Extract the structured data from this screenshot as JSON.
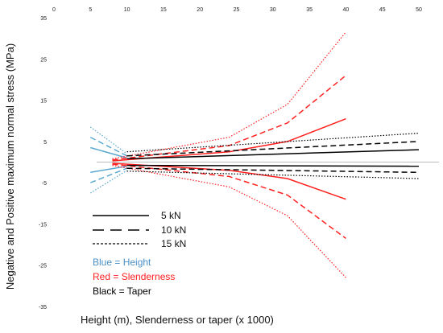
{
  "chart_data": {
    "type": "line",
    "title": "",
    "xlabel": "Height (m), Slenderness or taper (x 1000)",
    "ylabel": "Negative and Positive maximum normal stress (MPa)",
    "xlim": [
      0,
      50
    ],
    "ylim": [
      -35,
      35
    ],
    "x_ticks": [
      0,
      5,
      10,
      15,
      20,
      25,
      30,
      35,
      40,
      45,
      50
    ],
    "y_ticks": [
      35,
      25,
      15,
      5,
      -5,
      -15,
      -25,
      -35
    ],
    "grid": false,
    "zero_line": true,
    "legend": {
      "placement": "bottom-left",
      "entries": [
        {
          "label": "5 kN",
          "style": "solid"
        },
        {
          "label": "10 kN",
          "style": "dashed"
        },
        {
          "label": "15 kN",
          "style": "dotted"
        }
      ]
    },
    "annotations": [
      {
        "text": "Blue = Height",
        "color": "#4a90c8"
      },
      {
        "text": "Red = Slenderness",
        "color": "#ff2020"
      },
      {
        "text": "Black = Taper",
        "color": "#000000"
      }
    ],
    "series": [
      {
        "color": "#5aa8d0",
        "style": "solid",
        "x": [
          5,
          10
        ],
        "y": [
          3.5,
          1
        ]
      },
      {
        "color": "#5aa8d0",
        "style": "dashed",
        "x": [
          5,
          10
        ],
        "y": [
          6,
          1.5
        ]
      },
      {
        "color": "#5aa8d0",
        "style": "dotted",
        "x": [
          5,
          10
        ],
        "y": [
          8.5,
          2
        ]
      },
      {
        "color": "#5aa8d0",
        "style": "solid",
        "x": [
          5,
          10
        ],
        "y": [
          -2.5,
          -1
        ]
      },
      {
        "color": "#5aa8d0",
        "style": "dashed",
        "x": [
          5,
          10
        ],
        "y": [
          -5,
          -1.5
        ]
      },
      {
        "color": "#5aa8d0",
        "style": "dotted",
        "x": [
          5,
          10
        ],
        "y": [
          -7.5,
          -2
        ]
      },
      {
        "color": "#ff2020",
        "style": "solid",
        "x": [
          8,
          24,
          32,
          40
        ],
        "y": [
          0.3,
          2.5,
          5,
          10.5
        ]
      },
      {
        "color": "#ff2020",
        "style": "dashed",
        "x": [
          8,
          24,
          32,
          40
        ],
        "y": [
          0.5,
          4,
          9.5,
          21
        ]
      },
      {
        "color": "#ff2020",
        "style": "dotted",
        "x": [
          8,
          24,
          32,
          40
        ],
        "y": [
          0.8,
          6,
          14,
          31.5
        ]
      },
      {
        "color": "#ff2020",
        "style": "solid",
        "x": [
          8,
          24,
          32,
          40
        ],
        "y": [
          -0.3,
          -2,
          -4,
          -9
        ]
      },
      {
        "color": "#ff2020",
        "style": "dashed",
        "x": [
          8,
          24,
          32,
          40
        ],
        "y": [
          -0.5,
          -3.5,
          -8,
          -18.5
        ]
      },
      {
        "color": "#ff2020",
        "style": "dotted",
        "x": [
          8,
          24,
          32,
          40
        ],
        "y": [
          -0.8,
          -6,
          -13,
          -28
        ]
      },
      {
        "color": "#000000",
        "style": "solid",
        "x": [
          10,
          50
        ],
        "y": [
          0.8,
          3
        ]
      },
      {
        "color": "#000000",
        "style": "dashed",
        "x": [
          10,
          50
        ],
        "y": [
          1.5,
          5
        ]
      },
      {
        "color": "#000000",
        "style": "dotted",
        "x": [
          10,
          50
        ],
        "y": [
          2.5,
          7
        ]
      },
      {
        "color": "#000000",
        "style": "solid",
        "x": [
          10,
          50
        ],
        "y": [
          -0.8,
          -1
        ]
      },
      {
        "color": "#000000",
        "style": "dashed",
        "x": [
          10,
          50
        ],
        "y": [
          -1.5,
          -2.5
        ]
      },
      {
        "color": "#000000",
        "style": "dotted",
        "x": [
          10,
          50
        ],
        "y": [
          -2.2,
          -4
        ]
      }
    ]
  }
}
